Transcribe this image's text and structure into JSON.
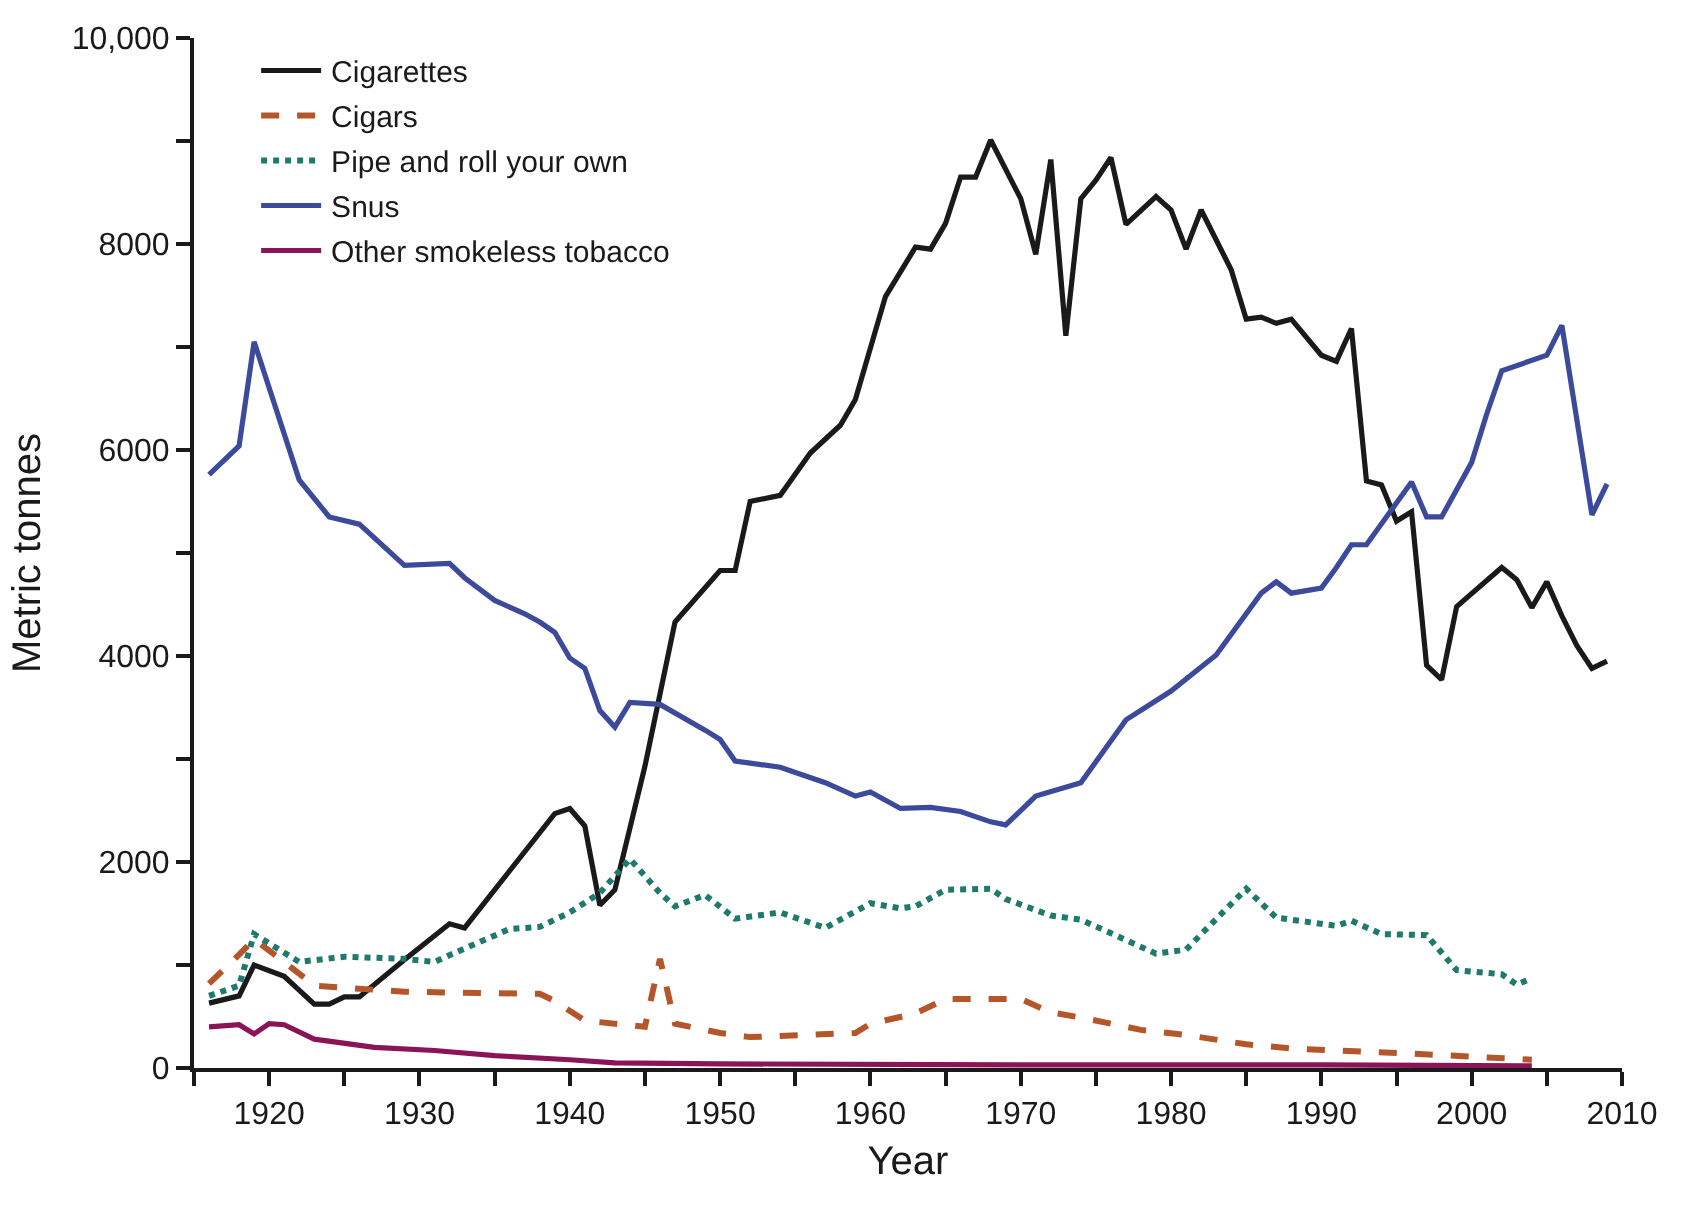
{
  "chart_data": {
    "type": "line",
    "xlabel": "Year",
    "ylabel": "Metric tonnes",
    "xlim": [
      1915,
      2010
    ],
    "xticks": [
      {
        "value": 1915,
        "label": null
      },
      1920,
      {
        "value": 1925,
        "label": null
      },
      1930,
      {
        "value": 1935,
        "label": null
      },
      1940,
      {
        "value": 1945,
        "label": null
      },
      1950,
      {
        "value": 1955,
        "label": null
      },
      1960,
      {
        "value": 1965,
        "label": null
      },
      1970,
      {
        "value": 1975,
        "label": null
      },
      1980,
      {
        "value": 1985,
        "label": null
      },
      1990,
      {
        "value": 1995,
        "label": null
      },
      2000,
      {
        "value": 2005,
        "label": null
      },
      2010
    ],
    "ylim": [
      0,
      10000
    ],
    "yticks": [
      0,
      {
        "value": 1000,
        "label": null
      },
      2000,
      {
        "value": 3000,
        "label": null
      },
      4000,
      {
        "value": 5000,
        "label": null
      },
      6000,
      {
        "value": 7000,
        "label": null
      },
      8000,
      {
        "value": 9000,
        "label": null
      },
      {
        "value": 10000,
        "label": "10,000"
      }
    ],
    "grid": false,
    "legend": "top left",
    "marker": "none",
    "series": [
      {
        "name": "Cigarettes",
        "color": "#1a1a1a",
        "line_style": "solid",
        "x": [
          1916,
          1918,
          1919,
          1921,
          1923,
          1924,
          1925,
          1926,
          1929,
          1932,
          1933,
          1939,
          1940,
          1941,
          1942,
          1943,
          1944,
          1945,
          1947,
          1950,
          1951,
          1952,
          1954,
          1956,
          1958,
          1959,
          1961,
          1963,
          1964,
          1965,
          1966,
          1967,
          1968,
          1970,
          1971,
          1972,
          1973,
          1974,
          1975,
          1976,
          1977,
          1979,
          1980,
          1981,
          1982,
          1984,
          1985,
          1986,
          1987,
          1988,
          1990,
          1991,
          1992,
          1993,
          1994,
          1995,
          1996,
          1997,
          1998,
          1999,
          2002,
          2003,
          2004,
          2005,
          2006,
          2007,
          2008,
          2009
        ],
        "values": [
          630,
          700,
          1000,
          890,
          620,
          620,
          690,
          690,
          1050,
          1400,
          1360,
          2470,
          2520,
          2350,
          1580,
          1730,
          2330,
          2930,
          4330,
          4830,
          4830,
          5500,
          5560,
          5970,
          6240,
          6490,
          7490,
          7970,
          7950,
          8200,
          8650,
          8650,
          9010,
          8440,
          7900,
          8820,
          7110,
          8440,
          8620,
          8840,
          8190,
          8460,
          8330,
          7950,
          8330,
          7750,
          7270,
          7290,
          7230,
          7270,
          6920,
          6860,
          7180,
          5700,
          5660,
          5310,
          5400,
          3910,
          3770,
          4480,
          4860,
          4740,
          4470,
          4720,
          4390,
          4100,
          3880,
          3950
        ]
      },
      {
        "name": "Cigars",
        "color": "#b5562a",
        "line_style": "dashed",
        "x": [
          1916,
          1918,
          1919,
          1921,
          1923,
          1929,
          1938,
          1939,
          1941,
          1945,
          1946,
          1947,
          1950,
          1952,
          1959,
          1960,
          1963,
          1965,
          1970,
          1972,
          1974,
          1978,
          1981,
          1985,
          1988,
          1991,
          1996,
          2000,
          2004
        ],
        "values": [
          820,
          1100,
          1250,
          1030,
          800,
          740,
          720,
          650,
          460,
          400,
          1060,
          430,
          340,
          300,
          340,
          430,
          530,
          670,
          670,
          540,
          490,
          370,
          320,
          230,
          190,
          170,
          140,
          110,
          80
        ]
      },
      {
        "name": "Pipe and roll your own",
        "color": "#1f7a6e",
        "line_style": "dotted",
        "x": [
          1916,
          1918,
          1919,
          1922,
          1925,
          1929,
          1931,
          1933,
          1936,
          1938,
          1940,
          1942,
          1944,
          1946,
          1947,
          1949,
          1951,
          1954,
          1957,
          1960,
          1962,
          1963,
          1965,
          1968,
          1969,
          1972,
          1974,
          1979,
          1981,
          1985,
          1987,
          1991,
          1992,
          1994,
          1997,
          1999,
          2002,
          2003,
          2004
        ],
        "values": [
          700,
          800,
          1300,
          1030,
          1080,
          1060,
          1030,
          1160,
          1350,
          1370,
          1510,
          1700,
          2030,
          1700,
          1570,
          1680,
          1450,
          1510,
          1360,
          1600,
          1550,
          1570,
          1730,
          1740,
          1640,
          1480,
          1440,
          1110,
          1150,
          1740,
          1460,
          1380,
          1430,
          1300,
          1290,
          950,
          910,
          810,
          870
        ]
      },
      {
        "name": "Snus",
        "color": "#3b4a9a",
        "line_style": "solid",
        "x": [
          1916,
          1918,
          1919,
          1922,
          1924,
          1926,
          1929,
          1932,
          1933,
          1935,
          1937,
          1938,
          1939,
          1940,
          1941,
          1942,
          1943,
          1944,
          1946,
          1949,
          1950,
          1951,
          1952,
          1954,
          1957,
          1959,
          1960,
          1962,
          1964,
          1966,
          1968,
          1969,
          1971,
          1974,
          1977,
          1980,
          1983,
          1986,
          1987,
          1988,
          1990,
          1991,
          1992,
          1993,
          1996,
          1997,
          1998,
          2000,
          2001,
          2002,
          2005,
          2006,
          2008,
          2009
        ],
        "values": [
          5760,
          6040,
          7050,
          5710,
          5350,
          5280,
          4880,
          4900,
          4760,
          4540,
          4410,
          4330,
          4230,
          3980,
          3880,
          3470,
          3310,
          3550,
          3530,
          3280,
          3190,
          2980,
          2960,
          2920,
          2770,
          2640,
          2680,
          2520,
          2530,
          2490,
          2390,
          2360,
          2640,
          2770,
          3380,
          3660,
          4010,
          4610,
          4720,
          4610,
          4660,
          4860,
          5080,
          5080,
          5690,
          5350,
          5350,
          5880,
          6350,
          6770,
          6920,
          7210,
          5370,
          5670
        ]
      },
      {
        "name": "Other smokeless tobacco",
        "color": "#8b1458",
        "line_style": "solid",
        "x": [
          1916,
          1918,
          1919,
          1920,
          1921,
          1923,
          1927,
          1931,
          1935,
          1940,
          1943,
          1950,
          1970,
          1990,
          2004
        ],
        "values": [
          400,
          420,
          330,
          430,
          420,
          280,
          200,
          170,
          120,
          80,
          50,
          40,
          30,
          30,
          20
        ]
      }
    ]
  }
}
